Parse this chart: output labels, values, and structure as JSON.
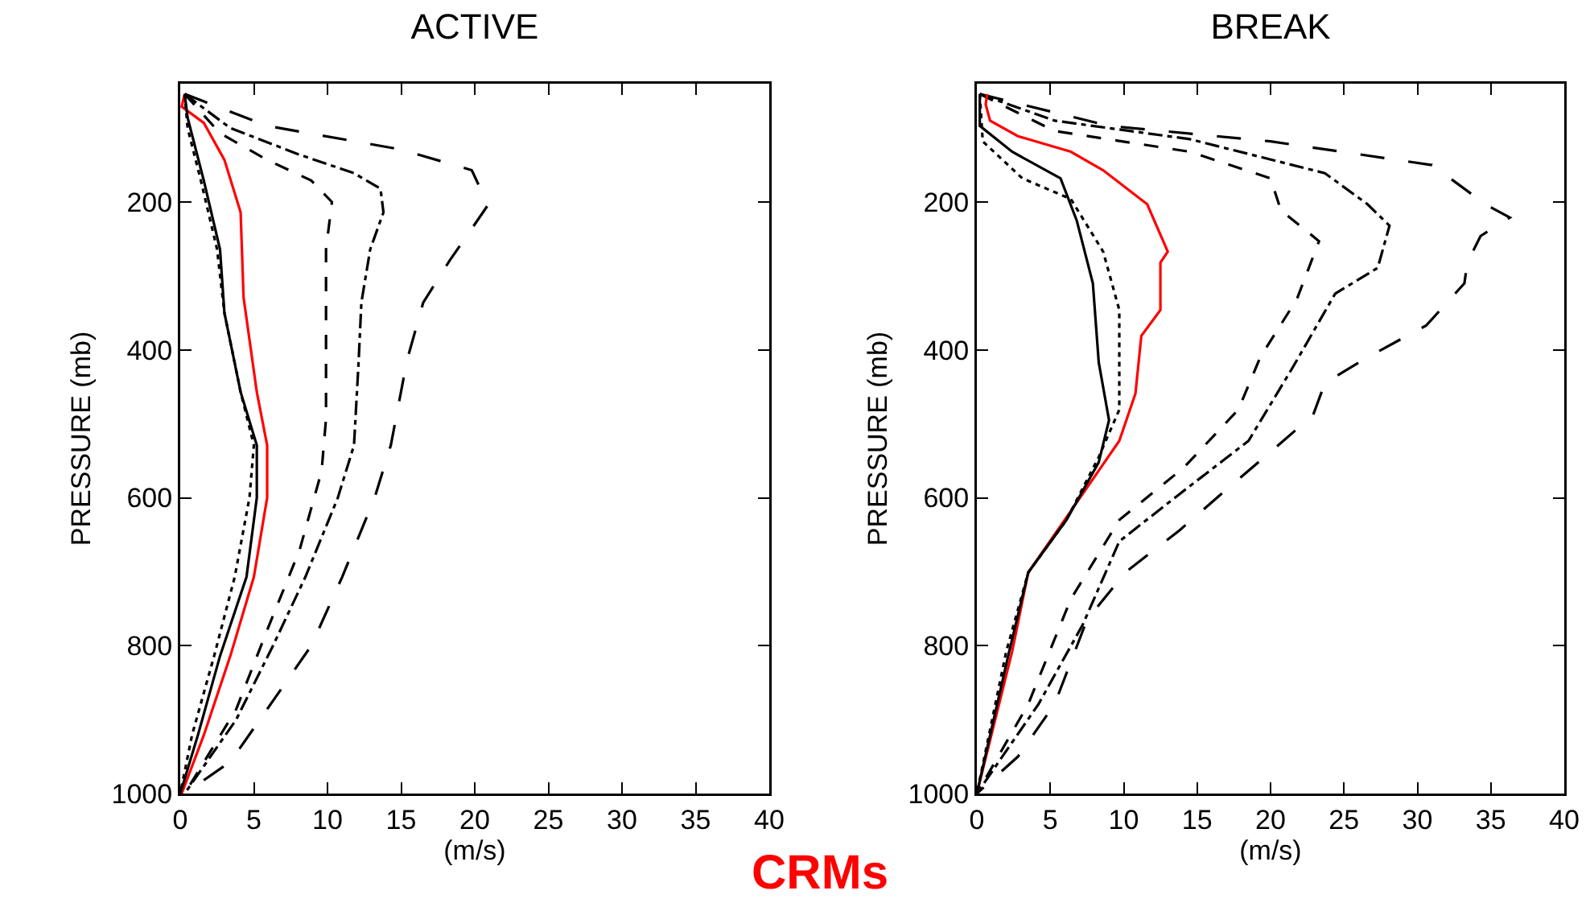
{
  "chart_data": [
    {
      "type": "line",
      "title": "ACTIVE",
      "xlabel": "(m/s)",
      "ylabel": "PRESSURE (mb)",
      "xlim": [
        0,
        40
      ],
      "xticks": [
        0,
        5,
        10,
        15,
        20,
        25,
        30,
        35,
        40
      ],
      "ylim": [
        1000,
        40
      ],
      "yticks": [
        200,
        400,
        600,
        800,
        1000
      ],
      "series": [
        {
          "color": "#000000",
          "line_style": "longdash",
          "x": [
            0.3,
            5.9,
            15,
            19.8,
            20.9,
            19.8,
            18.3,
            16.5,
            15.4,
            14.3,
            13.2,
            11,
            8.9,
            5.9,
            3.4,
            0.3
          ],
          "values": [
            54,
            97,
            129,
            157,
            204,
            236,
            279,
            336,
            414,
            529,
            600,
            707,
            800,
            886,
            957,
            1000
          ]
        },
        {
          "color": "#000000",
          "line_style": "dashdot",
          "x": [
            0.3,
            3.4,
            8.1,
            11.8,
            13.6,
            13.8,
            12.9,
            12.3,
            12.1,
            11.8,
            10.7,
            8.5,
            6.3,
            3.8,
            0.3
          ],
          "values": [
            54,
            100,
            136,
            161,
            182,
            214,
            264,
            336,
            421,
            529,
            600,
            707,
            800,
            900,
            1000
          ]
        },
        {
          "color": "#000000",
          "line_style": "dashed",
          "x": [
            0.3,
            2.7,
            5.9,
            8.9,
            10.3,
            9.9,
            9.9,
            9.9,
            9.6,
            8.1,
            5.9,
            3.8,
            0.3
          ],
          "values": [
            54,
            107,
            143,
            171,
            200,
            264,
            386,
            493,
            564,
            671,
            779,
            886,
            1000
          ]
        },
        {
          "color": "#ff0000",
          "line_style": "solid",
          "x": [
            0.3,
            0.1,
            1.6,
            3.0,
            4.1,
            4.3,
            5.2,
            5.9,
            5.9,
            5.0,
            3.4,
            1.6,
            0.1
          ],
          "values": [
            54,
            71,
            93,
            143,
            214,
            329,
            457,
            529,
            600,
            707,
            814,
            921,
            1000
          ]
        },
        {
          "color": "#000000",
          "line_style": "solid",
          "x": [
            0.3,
            0.5,
            1.6,
            2.7,
            3.0,
            4.1,
            5.2,
            5.2,
            4.5,
            2.7,
            1.2,
            0
          ],
          "values": [
            54,
            86,
            171,
            264,
            350,
            457,
            529,
            600,
            707,
            814,
            921,
            1000
          ]
        },
        {
          "color": "#000000",
          "line_style": "dotted",
          "x": [
            0.3,
            0.5,
            1.4,
            2.5,
            3.0,
            4.1,
            5.0,
            4.7,
            3.7,
            2.3,
            0.8,
            0
          ],
          "values": [
            54,
            100,
            171,
            264,
            350,
            457,
            529,
            600,
            707,
            814,
            921,
            1000
          ]
        }
      ]
    },
    {
      "type": "line",
      "title": "BREAK",
      "xlabel": "(m/s)",
      "ylabel": "PRESSURE (mb)",
      "xlim": [
        0,
        40
      ],
      "xticks": [
        0,
        5,
        10,
        15,
        20,
        25,
        30,
        35,
        40
      ],
      "ylim": [
        1000,
        40
      ],
      "yticks": [
        200,
        400,
        600,
        800,
        1000
      ],
      "annotations": [
        "CRMs"
      ],
      "series": [
        {
          "color": "#000000",
          "line_style": "longdash",
          "x": [
            0.2,
            9.0,
            20,
            31,
            34.7,
            36.3,
            34.3,
            33.4,
            33.2,
            30.6,
            26.6,
            23.7,
            22.9,
            20,
            17.1,
            13.8,
            10.1,
            7.5,
            5.3,
            2.8,
            0
          ],
          "values": [
            54,
            97,
            118,
            150,
            204,
            221,
            246,
            282,
            310,
            367,
            410,
            445,
            488,
            538,
            587,
            644,
            701,
            765,
            879,
            950,
            1000
          ]
        },
        {
          "color": "#000000",
          "line_style": "dashdot",
          "x": [
            0.2,
            5.3,
            14.5,
            23.7,
            26.6,
            28.1,
            27.3,
            24.4,
            21.5,
            18.5,
            13.8,
            9.7,
            7.2,
            4.2,
            0
          ],
          "values": [
            54,
            90,
            115,
            161,
            203,
            232,
            289,
            324,
            424,
            523,
            595,
            659,
            772,
            879,
            1000
          ]
        },
        {
          "color": "#000000",
          "line_style": "dashed",
          "x": [
            0.2,
            5.3,
            14.5,
            20,
            20.7,
            23.3,
            21.8,
            19.3,
            17.8,
            14.1,
            9.7,
            6.4,
            3.5,
            0
          ],
          "values": [
            54,
            104,
            132,
            168,
            211,
            253,
            331,
            410,
            481,
            559,
            630,
            737,
            879,
            1000
          ]
        },
        {
          "color": "#ff0000",
          "line_style": "solid",
          "x": [
            0.7,
            0.6,
            0.9,
            2.8,
            6.4,
            8.6,
            11.6,
            13.0,
            12.5,
            12.5,
            11.2,
            10.8,
            9.7,
            7.2,
            3.5,
            2.4,
            0
          ],
          "values": [
            54,
            68,
            90,
            111,
            132,
            157,
            203,
            267,
            282,
            346,
            381,
            459,
            523,
            595,
            701,
            808,
            1000
          ]
        },
        {
          "color": "#000000",
          "line_style": "solid",
          "x": [
            0.2,
            0.2,
            2.4,
            5.7,
            6.8,
            7.9,
            8.3,
            9.0,
            8.3,
            6.1,
            3.5,
            2.2,
            0
          ],
          "values": [
            54,
            97,
            132,
            168,
            225,
            310,
            417,
            495,
            552,
            630,
            701,
            808,
            1000
          ]
        },
        {
          "color": "#000000",
          "line_style": "dotted",
          "x": [
            0.2,
            0.4,
            3.1,
            6.4,
            8.6,
            9.7,
            9.7,
            8.3,
            6.1,
            3.5,
            2.0,
            0
          ],
          "values": [
            54,
            118,
            168,
            196,
            267,
            346,
            481,
            545,
            630,
            701,
            808,
            1000
          ]
        }
      ]
    }
  ]
}
